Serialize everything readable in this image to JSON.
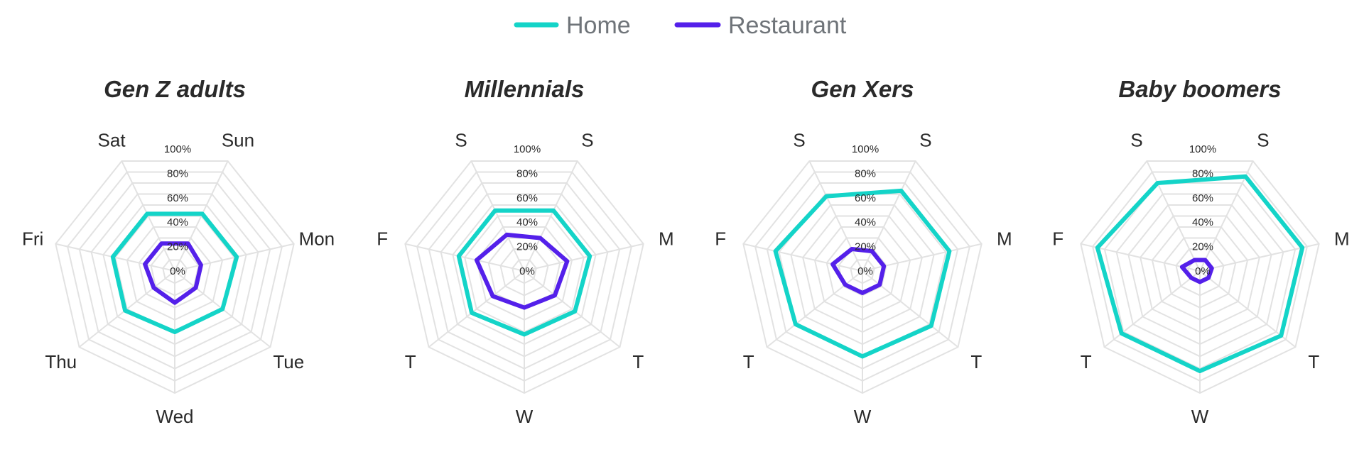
{
  "chart_data": {
    "type": "radar",
    "legend": {
      "placement": "top-center",
      "items": [
        {
          "name": "Home",
          "color": "#14d4c8"
        },
        {
          "name": "Restaurant",
          "color": "#5420ea"
        }
      ]
    },
    "r_axis": {
      "range": [
        0,
        100
      ],
      "ticks": [
        0,
        20,
        40,
        60,
        80,
        100
      ],
      "tick_labels": [
        "0%",
        "20%",
        "40%",
        "60%",
        "80%",
        "100%"
      ]
    },
    "grid": true,
    "panels": [
      {
        "title": "Gen Z adults",
        "axes": [
          "Sun",
          "Mon",
          "Tue",
          "Wed",
          "Thu",
          "Fri",
          "Sat"
        ],
        "series": [
          {
            "name": "Home",
            "values": [
              52,
              52,
              50,
              50,
              52,
              52,
              52
            ]
          },
          {
            "name": "Restaurant",
            "values": [
              25,
              22,
              22,
              26,
              22,
              25,
              25
            ]
          }
        ]
      },
      {
        "title": "Millennials",
        "axes": [
          "S",
          "M",
          "T",
          "W",
          "T",
          "F",
          "S"
        ],
        "series": [
          {
            "name": "Home",
            "values": [
              55,
              55,
              53,
              52,
              55,
              55,
              55
            ]
          },
          {
            "name": "Restaurant",
            "values": [
              30,
              36,
              32,
              30,
              33,
              40,
              33
            ]
          }
        ]
      },
      {
        "title": "Gen Xers",
        "axes": [
          "S",
          "M",
          "T",
          "W",
          "T",
          "F",
          "S"
        ],
        "series": [
          {
            "name": "Home",
            "values": [
              73,
              73,
              72,
              70,
              70,
              73,
              68
            ]
          },
          {
            "name": "Restaurant",
            "values": [
              18,
              18,
              18,
              18,
              18,
              25,
              20
            ]
          }
        ]
      },
      {
        "title": "Baby boomers",
        "axes": [
          "S",
          "M",
          "T",
          "W",
          "T",
          "F",
          "S"
        ],
        "series": [
          {
            "name": "Home",
            "values": [
              86,
              86,
              85,
              82,
              82,
              86,
              80
            ]
          },
          {
            "name": "Restaurant",
            "values": [
              10,
              10,
              9,
              9,
              9,
              15,
              10
            ]
          }
        ]
      }
    ]
  }
}
